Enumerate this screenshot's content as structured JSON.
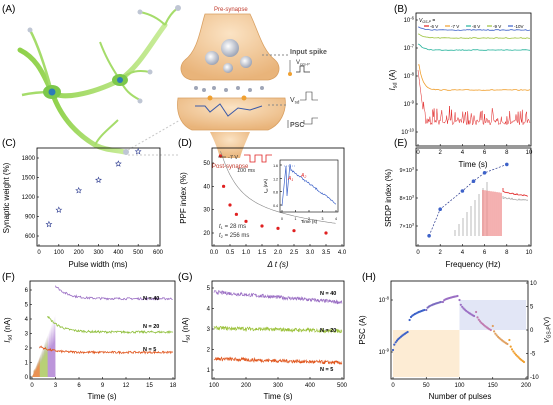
{
  "panels": {
    "A": {
      "label": "(A)",
      "texts": {
        "pre": "Pre-synapse",
        "post": "Post-synapse",
        "input": "Input spike",
        "vgsp": "V",
        "vgsp_sub": "GS-P",
        "vsd": "V",
        "vsd_sub": "sd",
        "psc": "PSC"
      }
    },
    "B": {
      "label": "(B)",
      "xlabel": "Time (s)",
      "ylabel": "I",
      "ylabel_sub": "sd",
      "yunit": " (A)",
      "xticks": [
        "0",
        "2",
        "4",
        "6",
        "8",
        "10"
      ],
      "yticks": [
        "10",
        "10",
        "10",
        "10",
        "10"
      ],
      "yexp": [
        "-6",
        "-7",
        "-8",
        "-9",
        "-10"
      ],
      "legend_title": "V",
      "legend_title_sub": "GS-P",
      "legend_title_suffix": " =",
      "series": [
        {
          "name": "-6 V",
          "color": "#e02020"
        },
        {
          "name": "-7 V",
          "color": "#f0a030"
        },
        {
          "name": "-8 V",
          "color": "#26b39c"
        },
        {
          "name": "-9 V",
          "color": "#9cc23c"
        },
        {
          "name": "-10V",
          "color": "#3d62c9"
        }
      ]
    },
    "C": {
      "label": "(C)",
      "xlabel": "Pulse width (ms)",
      "ylabel": "Synaptic weight (%)",
      "xticks": [
        "0",
        "100",
        "200",
        "300",
        "400",
        "500",
        "600"
      ],
      "yticks": [
        "600",
        "900",
        "1200",
        "1500",
        "1800"
      ]
    },
    "D": {
      "label": "(D)",
      "xlabel": "Δ t (s)",
      "ylabel": "PPF index (%)",
      "xticks": [
        "0.0",
        "0.5",
        "1.0",
        "1.5",
        "2.0",
        "2.5",
        "3.0",
        "3.5",
        "4.0"
      ],
      "yticks": [
        "20",
        "30",
        "40",
        "50"
      ],
      "pulse_v": "-7 V",
      "pulse_ms": "100 ms",
      "t1": "t",
      "t1_sub": "1",
      "t1_val": " = 28 ms",
      "t2": "t",
      "t2_sub": "2",
      "t2_val": " = 256 ms",
      "inset": {
        "ylabel": "I",
        "ylabel_sub": "sd",
        "yunit": " (nA)",
        "xlabel": "Time (s)",
        "xticks": [
          "0",
          "1",
          "2",
          "3",
          "4"
        ],
        "yticks": [
          "1.6",
          "1.2",
          "0.8",
          "0.4"
        ],
        "a1": "A",
        "a1_sub": "1",
        "a2": "A",
        "a2_sub": "2"
      }
    },
    "E": {
      "label": "(E)",
      "xlabel": "Frequency (Hz)",
      "ylabel": "SRDP index (%)",
      "xticks": [
        "0",
        "2",
        "4",
        "6",
        "8",
        "10"
      ],
      "yticks": [
        "7×10",
        "8×10",
        "9×10"
      ],
      "yexp": "3"
    },
    "F": {
      "label": "(F)",
      "xlabel": "Time (s)",
      "ylabel": "I",
      "ylabel_sub": "sd",
      "yunit": " (nA)",
      "xticks": [
        "0",
        "3",
        "6",
        "9",
        "12",
        "15",
        "18"
      ],
      "yticks": [
        "0",
        "1",
        "2",
        "3",
        "4",
        "5",
        "6"
      ],
      "labels": [
        "N = 40",
        "N = 20",
        "N = 5"
      ]
    },
    "G": {
      "label": "(G)",
      "xlabel": "Time (s)",
      "ylabel": "I",
      "ylabel_sub": "sd",
      "yunit": " (nA)",
      "xticks": [
        "100",
        "200",
        "300",
        "400",
        "500"
      ],
      "yticks": [
        "1",
        "2",
        "3",
        "4",
        "5"
      ],
      "labels": [
        "N = 40",
        "N = 20",
        "N = 5"
      ]
    },
    "H": {
      "label": "(H)",
      "xlabel": "Number of pulses",
      "ylabel": "PSC (A)",
      "ylabel2": "V",
      "ylabel2_sub": "GS-P",
      "ylabel2_unit": "(V)",
      "xticks": [
        "0",
        "50",
        "100",
        "150",
        "200"
      ],
      "yticks": [
        "10",
        "10"
      ],
      "yexp": [
        "-8",
        "-9"
      ],
      "y2ticks": [
        "10",
        "5",
        "0",
        "-5",
        "-10"
      ]
    }
  },
  "colors": {
    "red": "#e02020",
    "orange": "#f0a030",
    "teal": "#26b39c",
    "green": "#9cc23c",
    "blue": "#3d62c9",
    "purple": "#9b6fc4",
    "navy": "#2b3a8f"
  }
}
